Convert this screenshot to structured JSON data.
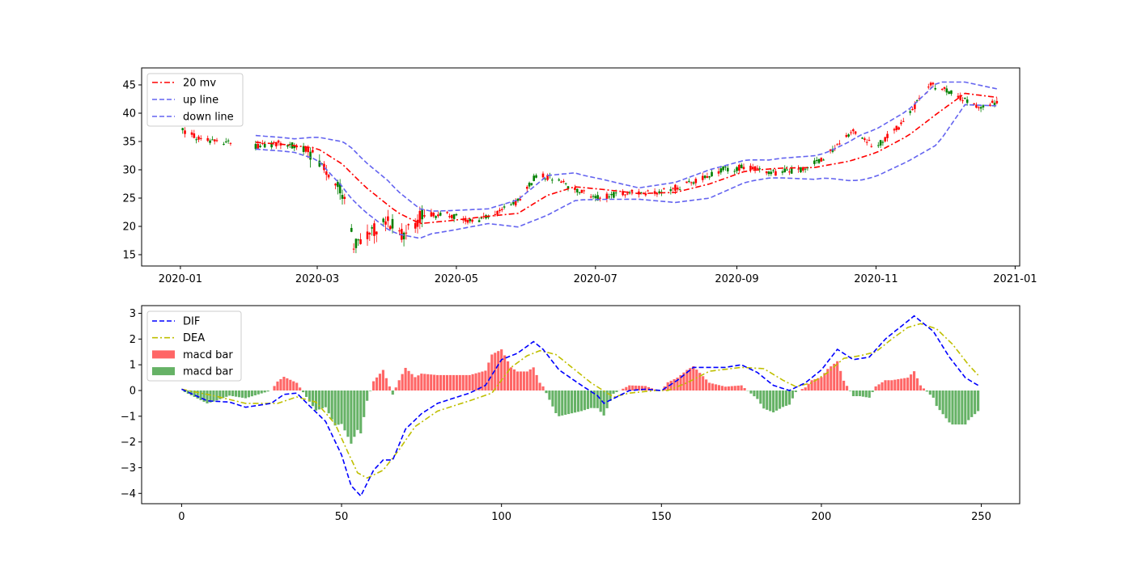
{
  "chart_data": [
    {
      "type": "line",
      "chart_kind": "candlestick with Bollinger bands",
      "x_kind": "date",
      "xlim": [
        "2019-12-15",
        "2021-01-03"
      ],
      "ylim": [
        13,
        48
      ],
      "xticks": [
        "2020-01",
        "2020-03",
        "2020-05",
        "2020-07",
        "2020-09",
        "2020-11",
        "2021-01"
      ],
      "xtick_dates": [
        "2020-01-01",
        "2020-03-01",
        "2020-05-01",
        "2020-07-01",
        "2020-09-01",
        "2020-11-01",
        "2021-01-01"
      ],
      "yticks": [
        15,
        20,
        25,
        30,
        35,
        40,
        45
      ],
      "legend_position": "upper-left",
      "colors": {
        "up": "#ff0000",
        "down": "#008000",
        "ma": "#ff0000",
        "band": "#6464f0"
      },
      "close_anchors": [
        [
          "2020-01-02",
          37.0
        ],
        [
          "2020-01-10",
          35.2
        ],
        [
          "2020-01-20",
          35.0
        ],
        [
          "2020-02-01",
          34.0
        ],
        [
          "2020-02-15",
          34.8
        ],
        [
          "2020-02-25",
          33.5
        ],
        [
          "2020-03-05",
          30.0
        ],
        [
          "2020-03-12",
          26.0
        ],
        [
          "2020-03-17",
          17.0
        ],
        [
          "2020-03-24",
          19.0
        ],
        [
          "2020-04-01",
          21.0
        ],
        [
          "2020-04-08",
          18.5
        ],
        [
          "2020-04-16",
          22.0
        ],
        [
          "2020-04-28",
          22.0
        ],
        [
          "2020-05-08",
          21.0
        ],
        [
          "2020-05-18",
          22.0
        ],
        [
          "2020-05-28",
          24.5
        ],
        [
          "2020-06-05",
          29.0
        ],
        [
          "2020-06-12",
          28.5
        ],
        [
          "2020-06-22",
          26.5
        ],
        [
          "2020-07-01",
          25.0
        ],
        [
          "2020-07-15",
          26.0
        ],
        [
          "2020-07-30",
          26.0
        ],
        [
          "2020-08-10",
          27.5
        ],
        [
          "2020-08-25",
          30.0
        ],
        [
          "2020-09-05",
          30.5
        ],
        [
          "2020-09-18",
          29.5
        ],
        [
          "2020-10-01",
          30.0
        ],
        [
          "2020-10-12",
          33.0
        ],
        [
          "2020-10-22",
          37.0
        ],
        [
          "2020-11-01",
          34.0
        ],
        [
          "2020-11-12",
          38.0
        ],
        [
          "2020-11-25",
          45.0
        ],
        [
          "2020-12-05",
          43.5
        ],
        [
          "2020-12-15",
          41.0
        ],
        [
          "2020-12-24",
          42.0
        ]
      ],
      "ma_anchors": [
        [
          "2020-01-29",
          35.0
        ],
        [
          "2020-02-15",
          34.5
        ],
        [
          "2020-03-01",
          33.8
        ],
        [
          "2020-03-12",
          31.0
        ],
        [
          "2020-03-22",
          27.0
        ],
        [
          "2020-04-05",
          22.5
        ],
        [
          "2020-04-15",
          20.5
        ],
        [
          "2020-04-28",
          21.0
        ],
        [
          "2020-05-15",
          21.8
        ],
        [
          "2020-05-28",
          22.3
        ],
        [
          "2020-06-10",
          25.5
        ],
        [
          "2020-06-22",
          27.0
        ],
        [
          "2020-07-05",
          26.5
        ],
        [
          "2020-07-20",
          25.8
        ],
        [
          "2020-08-05",
          26.0
        ],
        [
          "2020-08-20",
          27.5
        ],
        [
          "2020-09-05",
          29.8
        ],
        [
          "2020-09-20",
          30.3
        ],
        [
          "2020-10-05",
          30.4
        ],
        [
          "2020-10-20",
          31.5
        ],
        [
          "2020-11-01",
          33.0
        ],
        [
          "2020-11-15",
          36.0
        ],
        [
          "2020-11-28",
          40.0
        ],
        [
          "2020-12-10",
          43.5
        ],
        [
          "2020-12-24",
          42.8
        ]
      ],
      "band_width_anchors": [
        [
          "2020-01-29",
          1.2
        ],
        [
          "2020-02-20",
          1.2
        ],
        [
          "2020-03-01",
          2.0
        ],
        [
          "2020-03-15",
          4.5
        ],
        [
          "2020-04-01",
          4.3
        ],
        [
          "2020-04-20",
          2.0
        ],
        [
          "2020-05-15",
          1.3
        ],
        [
          "2020-06-10",
          3.5
        ],
        [
          "2020-06-25",
          2.2
        ],
        [
          "2020-07-20",
          1.0
        ],
        [
          "2020-08-20",
          2.5
        ],
        [
          "2020-09-15",
          1.6
        ],
        [
          "2020-10-10",
          2.2
        ],
        [
          "2020-10-25",
          4.0
        ],
        [
          "2020-11-15",
          4.5
        ],
        [
          "2020-11-28",
          5.5
        ],
        [
          "2020-12-10",
          2.0
        ],
        [
          "2020-12-24",
          1.5
        ]
      ],
      "series": [
        {
          "name": "20 mv",
          "style": "dash-dot",
          "color": "#ff0000"
        },
        {
          "name": "up line",
          "style": "dashed",
          "color": "#6464f0"
        },
        {
          "name": "down line",
          "style": "dashed",
          "color": "#6464f0"
        }
      ]
    },
    {
      "type": "line",
      "chart_kind": "MACD",
      "xlim": [
        -12.5,
        262
      ],
      "ylim": [
        -4.4,
        3.3
      ],
      "xticks": [
        0,
        50,
        100,
        150,
        200,
        250
      ],
      "yticks": [
        -4,
        -3,
        -2,
        -1,
        0,
        1,
        2,
        3
      ],
      "legend_position": "upper-left",
      "colors": {
        "dif": "#0000ff",
        "dea": "#bfbf00",
        "bar_up": "#ff6666",
        "bar_down": "#66b266"
      },
      "dif_anchors": [
        [
          0,
          0.05
        ],
        [
          8,
          -0.4
        ],
        [
          15,
          -0.45
        ],
        [
          20,
          -0.65
        ],
        [
          28,
          -0.5
        ],
        [
          32,
          -0.15
        ],
        [
          36,
          -0.1
        ],
        [
          40,
          -0.6
        ],
        [
          45,
          -1.2
        ],
        [
          50,
          -2.5
        ],
        [
          53,
          -3.7
        ],
        [
          56,
          -4.1
        ],
        [
          60,
          -3.1
        ],
        [
          63,
          -2.7
        ],
        [
          66,
          -2.7
        ],
        [
          70,
          -1.5
        ],
        [
          75,
          -0.9
        ],
        [
          80,
          -0.5
        ],
        [
          90,
          -0.1
        ],
        [
          95,
          0.2
        ],
        [
          100,
          1.2
        ],
        [
          105,
          1.45
        ],
        [
          110,
          1.9
        ],
        [
          113,
          1.6
        ],
        [
          118,
          0.8
        ],
        [
          125,
          0.2
        ],
        [
          130,
          -0.2
        ],
        [
          132,
          -0.5
        ],
        [
          140,
          0.0
        ],
        [
          145,
          0.05
        ],
        [
          150,
          0.0
        ],
        [
          155,
          0.4
        ],
        [
          160,
          0.9
        ],
        [
          170,
          0.9
        ],
        [
          175,
          1.0
        ],
        [
          180,
          0.7
        ],
        [
          185,
          0.2
        ],
        [
          190,
          0.0
        ],
        [
          195,
          0.3
        ],
        [
          200,
          0.8
        ],
        [
          205,
          1.6
        ],
        [
          210,
          1.2
        ],
        [
          215,
          1.3
        ],
        [
          220,
          2.0
        ],
        [
          225,
          2.5
        ],
        [
          229,
          2.9
        ],
        [
          235,
          2.3
        ],
        [
          240,
          1.3
        ],
        [
          245,
          0.5
        ],
        [
          249,
          0.2
        ]
      ],
      "dea_anchors": [
        [
          0,
          0.05
        ],
        [
          10,
          -0.2
        ],
        [
          20,
          -0.5
        ],
        [
          30,
          -0.5
        ],
        [
          36,
          -0.25
        ],
        [
          42,
          -0.45
        ],
        [
          48,
          -1.3
        ],
        [
          52,
          -2.4
        ],
        [
          55,
          -3.2
        ],
        [
          58,
          -3.4
        ],
        [
          63,
          -3.1
        ],
        [
          68,
          -2.3
        ],
        [
          73,
          -1.4
        ],
        [
          80,
          -0.8
        ],
        [
          90,
          -0.4
        ],
        [
          97,
          -0.1
        ],
        [
          103,
          0.9
        ],
        [
          108,
          1.35
        ],
        [
          112,
          1.55
        ],
        [
          117,
          1.4
        ],
        [
          122,
          0.9
        ],
        [
          128,
          0.3
        ],
        [
          135,
          -0.25
        ],
        [
          140,
          -0.1
        ],
        [
          148,
          0.0
        ],
        [
          152,
          0.0
        ],
        [
          158,
          0.3
        ],
        [
          165,
          0.75
        ],
        [
          175,
          0.9
        ],
        [
          182,
          0.85
        ],
        [
          188,
          0.4
        ],
        [
          192,
          0.15
        ],
        [
          197,
          0.3
        ],
        [
          202,
          0.7
        ],
        [
          207,
          1.25
        ],
        [
          212,
          1.35
        ],
        [
          217,
          1.5
        ],
        [
          222,
          2.0
        ],
        [
          227,
          2.45
        ],
        [
          231,
          2.6
        ],
        [
          236,
          2.4
        ],
        [
          241,
          1.8
        ],
        [
          246,
          1.0
        ],
        [
          249,
          0.6
        ]
      ],
      "series": [
        {
          "name": "DIF",
          "style": "dashed",
          "color": "#0000ff"
        },
        {
          "name": "DEA",
          "style": "dash-dot",
          "color": "#bfbf00"
        },
        {
          "name": "macd bar",
          "style": "bar",
          "color": "#ff6666"
        },
        {
          "name": "macd bar",
          "style": "bar",
          "color": "#66b266"
        }
      ]
    }
  ]
}
